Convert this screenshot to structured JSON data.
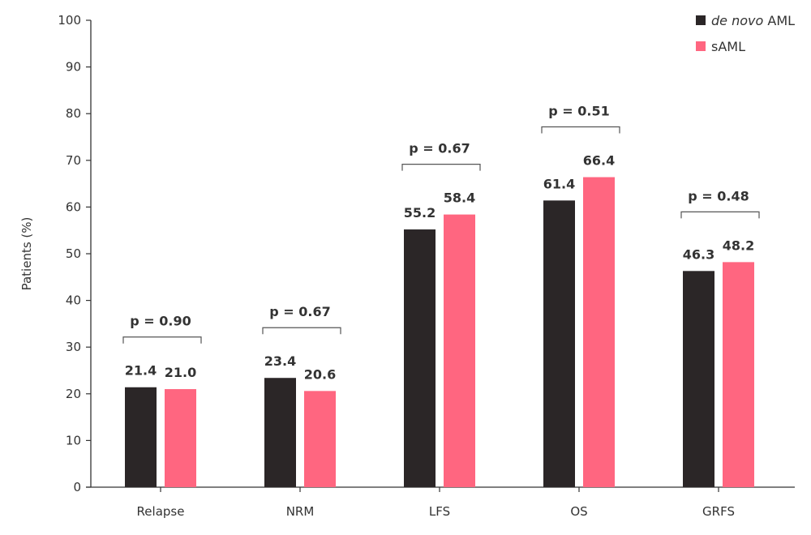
{
  "chart_data": {
    "type": "bar",
    "title": "",
    "xlabel": "",
    "ylabel": "Patients (%)",
    "ylim": [
      0,
      100
    ],
    "yticks": [
      0,
      10,
      20,
      30,
      40,
      50,
      60,
      70,
      80,
      90,
      100
    ],
    "grid": false,
    "legend_position": "top-right",
    "categories": [
      "Relapse",
      "NRM",
      "LFS",
      "OS",
      "GRFS"
    ],
    "series": [
      {
        "name": "de novo AML",
        "name_italic": "de novo",
        "name_rest": " AML",
        "color": "#2b2627",
        "values": [
          21.4,
          23.4,
          55.2,
          61.4,
          46.3
        ],
        "labels": [
          "21.4",
          "23.4",
          "55.2",
          "61.4",
          "46.3"
        ]
      },
      {
        "name": "sAML",
        "color": "#ff6680",
        "values": [
          21.0,
          20.6,
          58.4,
          66.4,
          48.2
        ],
        "labels": [
          "21.0",
          "20.6",
          "58.4",
          "66.4",
          "48.2"
        ]
      }
    ],
    "annotations": [
      "p = 0.90",
      "p = 0.67",
      "p = 0.67",
      "p = 0.51",
      "p = 0.48"
    ]
  }
}
